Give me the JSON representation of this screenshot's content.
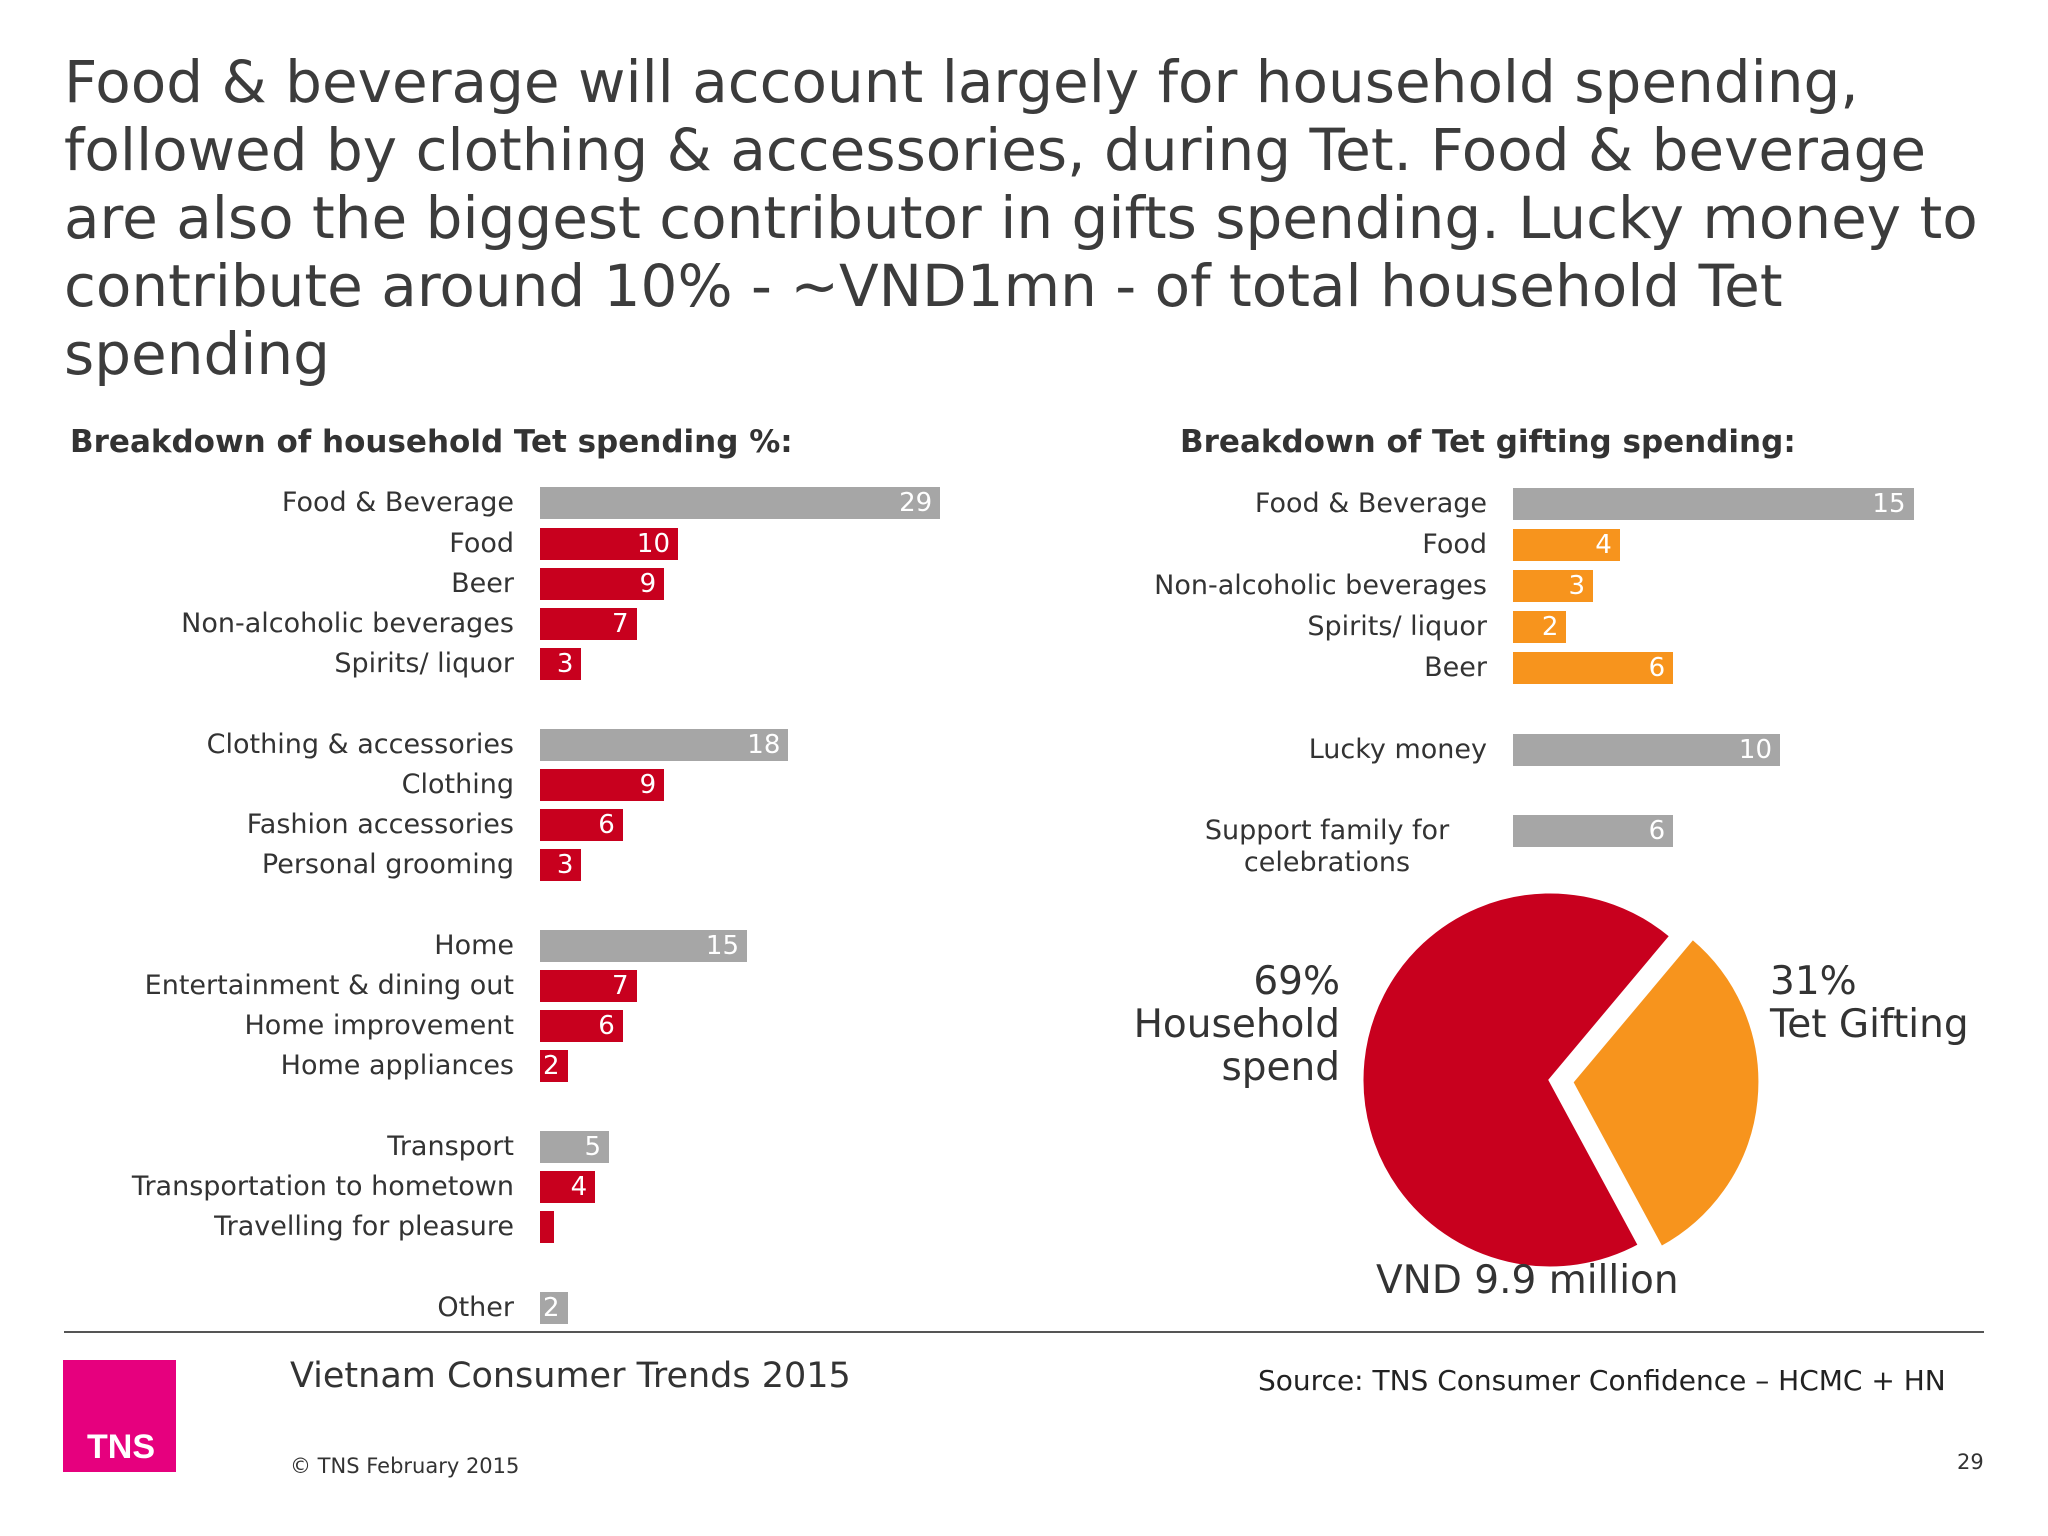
{
  "headline": "Food & beverage will account largely for household spending, followed by clothing & accessories, during Tet. Food & beverage are also the biggest contributor in gifts spending. Lucky money to contribute around 10% - ~VND1mn - of total household Tet spending",
  "colors": {
    "total": "#a6a6a6",
    "household_sub": "#c8001e",
    "gift_sub": "#f7941d",
    "logo": "#e6007e"
  },
  "chart_data": [
    {
      "type": "bar",
      "orientation": "horizontal",
      "title": "Breakdown of household Tet spending %:",
      "categories": [
        "Food & Beverage",
        "Food",
        "Beer",
        "Non-alcoholic beverages",
        "Spirits/ liquor",
        "Clothing & accessories",
        "Clothing",
        "Fashion accessories",
        "Personal grooming",
        "Home",
        "Entertainment & dining out",
        "Home improvement",
        "Home appliances",
        "Transport",
        "Transportation to hometown",
        "Travelling for pleasure",
        "Other"
      ],
      "values": [
        29,
        10,
        9,
        7,
        3,
        18,
        9,
        6,
        3,
        15,
        7,
        6,
        2,
        5,
        4,
        1,
        2
      ],
      "value_labels": [
        "29",
        "10",
        "9",
        "7",
        "3",
        "18",
        "9",
        "6",
        "3",
        "15",
        "7",
        "6",
        "2",
        "5",
        "4",
        "",
        "2"
      ],
      "kinds": [
        "total",
        "sub",
        "sub",
        "sub",
        "sub",
        "total",
        "sub",
        "sub",
        "sub",
        "total",
        "sub",
        "sub",
        "sub",
        "total",
        "sub",
        "sub",
        "total"
      ]
    },
    {
      "type": "bar",
      "orientation": "horizontal",
      "title": "Breakdown of Tet gifting spending:",
      "categories": [
        "Food & Beverage",
        "Food",
        "Non-alcoholic beverages",
        "Spirits/ liquor",
        "Beer",
        "Lucky money",
        "Support family for celebrations"
      ],
      "values": [
        15,
        4,
        3,
        2,
        6,
        10,
        6
      ],
      "value_labels": [
        "15",
        "4",
        "3",
        "2",
        "6",
        "10",
        "6"
      ],
      "kinds": [
        "total",
        "sub",
        "sub",
        "sub",
        "sub",
        "total",
        "total"
      ]
    },
    {
      "type": "pie",
      "slices": [
        {
          "pct_label": "69%",
          "label": "Household spend",
          "value": 69
        },
        {
          "pct_label": "31%",
          "label": "Tet Gifting",
          "value": 31
        }
      ],
      "total_label": "VND 9.9 million"
    }
  ],
  "footer": {
    "title": "Vietnam Consumer Trends 2015",
    "copyright": "© TNS February 2015",
    "source": "Source: TNS  Consumer Confidence – HCMC + HN",
    "page_number": "29",
    "logo_text": "TNS"
  }
}
